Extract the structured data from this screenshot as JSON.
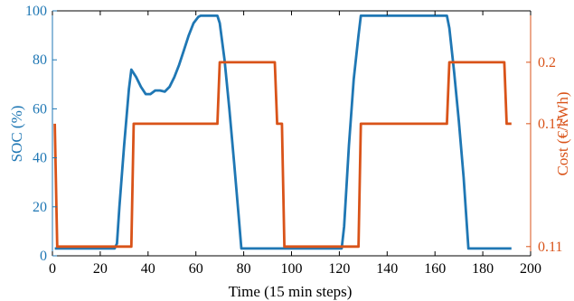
{
  "colors": {
    "soc": "#1f77b4",
    "cost": "#d95319",
    "axis": "#000000",
    "background": "#ffffff"
  },
  "chart_data": {
    "type": "line",
    "title": "",
    "xlabel": "Time (15 min steps)",
    "ylabel": "SOC (%)",
    "y2label": "Cost (€/kWh)",
    "xlim": [
      0,
      200
    ],
    "ylim": [
      0,
      100
    ],
    "y2lim": [
      0.1055,
      0.2251
    ],
    "grid": false,
    "x_ticks": [
      0,
      20,
      40,
      60,
      80,
      100,
      120,
      140,
      160,
      180,
      200
    ],
    "y_ticks": [
      0,
      20,
      40,
      60,
      80,
      100
    ],
    "y2_ticks": [
      0.11,
      0.17,
      0.2
    ],
    "y2_tick_labels": [
      "0.11",
      "0.17",
      "0.2"
    ],
    "series": [
      {
        "axis": "left",
        "x": [
          1,
          26,
          27,
          28,
          30,
          32,
          33,
          35,
          37,
          39,
          41,
          43,
          45,
          47,
          49,
          51,
          53,
          55,
          57,
          59,
          61,
          62,
          63,
          65,
          67,
          69,
          70,
          72,
          74,
          76,
          78,
          79,
          100,
          121,
          122,
          124,
          126,
          128,
          129,
          150,
          165,
          166,
          168,
          170,
          172,
          174,
          192
        ],
        "values": [
          3,
          3,
          5,
          20,
          45,
          68,
          76,
          73,
          69,
          66,
          66,
          67.5,
          67.5,
          67,
          69,
          73,
          78,
          84,
          90,
          95,
          97.5,
          98,
          98,
          98,
          98,
          98,
          95,
          80,
          60,
          38,
          15,
          3,
          3,
          3,
          12,
          45,
          72,
          90,
          98,
          98,
          98,
          93,
          75,
          55,
          32,
          3,
          3
        ]
      },
      {
        "axis": "right",
        "x": [
          1,
          2,
          33,
          34,
          69,
          70,
          93,
          94,
          96,
          97,
          128,
          129,
          165,
          166,
          189,
          190,
          192
        ],
        "values": [
          0.17,
          0.11,
          0.11,
          0.17,
          0.17,
          0.2,
          0.2,
          0.17,
          0.17,
          0.11,
          0.11,
          0.17,
          0.17,
          0.2,
          0.2,
          0.17,
          0.17
        ]
      }
    ]
  }
}
